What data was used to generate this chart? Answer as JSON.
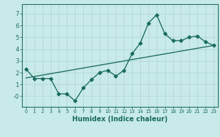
{
  "xlabel": "Humidex (Indice chaleur)",
  "bg_color": "#c8eae8",
  "grid_color": "#afd8d4",
  "line_color": "#1a6b60",
  "x_data": [
    0,
    1,
    2,
    3,
    4,
    5,
    6,
    7,
    8,
    9,
    10,
    11,
    12,
    13,
    14,
    15,
    16,
    17,
    18,
    19,
    20,
    21,
    22,
    23
  ],
  "y_data": [
    2.3,
    1.5,
    1.5,
    1.5,
    0.2,
    0.2,
    -0.4,
    0.7,
    1.4,
    2.0,
    2.2,
    1.7,
    2.2,
    3.6,
    4.5,
    6.2,
    6.9,
    5.3,
    4.7,
    4.7,
    5.0,
    5.1,
    4.6,
    4.3
  ],
  "trend_x": [
    0,
    23
  ],
  "trend_y": [
    1.55,
    4.3
  ],
  "xlim": [
    -0.5,
    23.5
  ],
  "ylim": [
    -0.9,
    7.8
  ],
  "yticks": [
    0,
    1,
    2,
    3,
    4,
    5,
    6,
    7
  ],
  "ytick_labels": [
    "-0",
    "1",
    "2",
    "3",
    "4",
    "5",
    "6",
    "7"
  ]
}
